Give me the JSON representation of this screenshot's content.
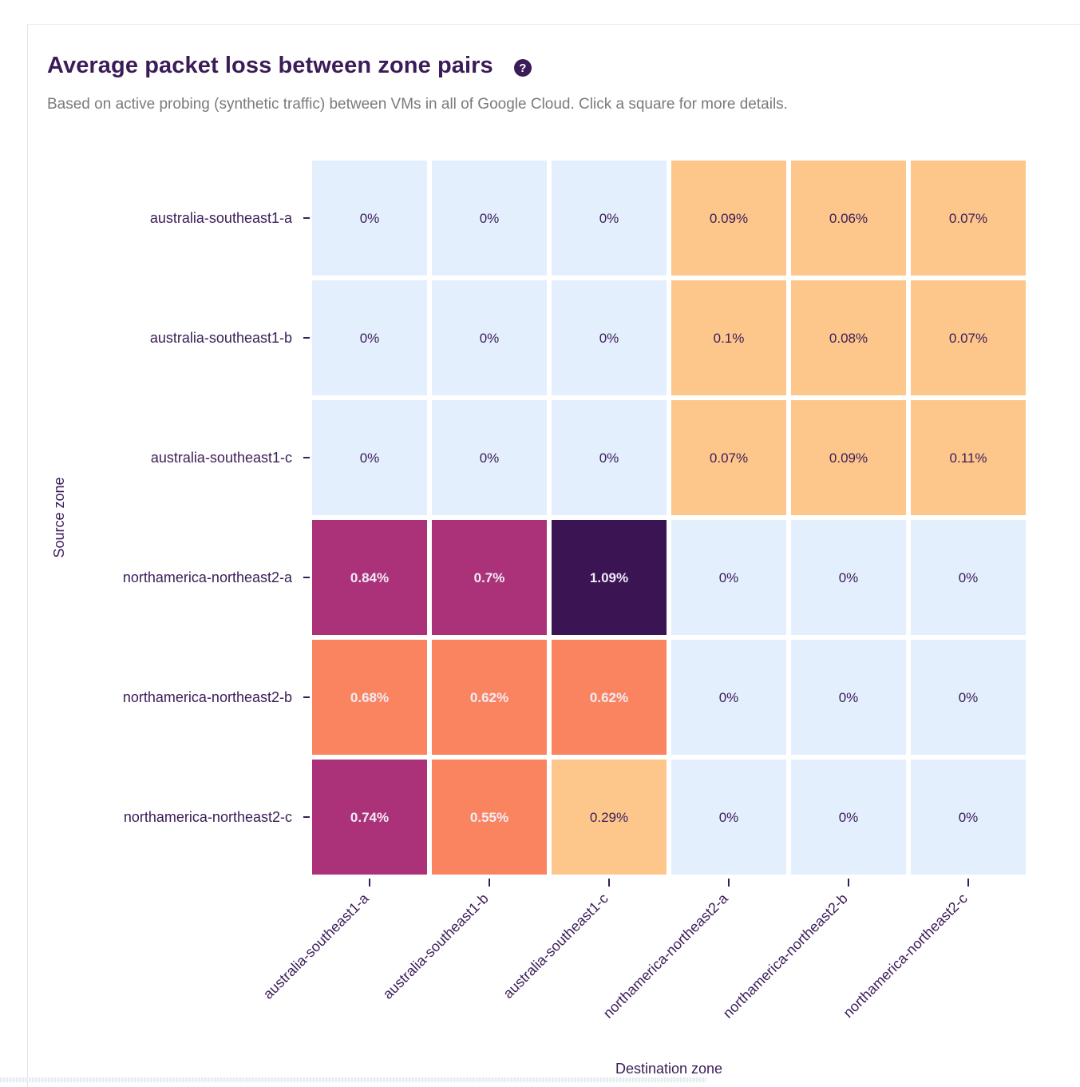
{
  "header": {
    "title": "Average packet loss between zone pairs",
    "help_icon": "question-circle-icon",
    "subtitle": "Based on active probing (synthetic traffic) between VMs in all of Google Cloud. Click a square for more details."
  },
  "chart_data": {
    "type": "heatmap",
    "xlabel": "Destination zone",
    "ylabel": "Source zone",
    "x_categories": [
      "australia-southeast1-a",
      "australia-southeast1-b",
      "australia-southeast1-c",
      "northamerica-northeast2-a",
      "northamerica-northeast2-b",
      "northamerica-northeast2-c"
    ],
    "y_categories": [
      "australia-southeast1-a",
      "australia-southeast1-b",
      "australia-southeast1-c",
      "northamerica-northeast2-a",
      "northamerica-northeast2-b",
      "northamerica-northeast2-c"
    ],
    "values": [
      [
        0,
        0,
        0,
        0.09,
        0.06,
        0.07
      ],
      [
        0,
        0,
        0,
        0.1,
        0.08,
        0.07
      ],
      [
        0,
        0,
        0,
        0.07,
        0.09,
        0.11
      ],
      [
        0.84,
        0.7,
        1.09,
        0,
        0,
        0
      ],
      [
        0.68,
        0.62,
        0.62,
        0,
        0,
        0
      ],
      [
        0.74,
        0.55,
        0.29,
        0,
        0,
        0
      ]
    ],
    "value_labels": [
      [
        "0%",
        "0%",
        "0%",
        "0.09%",
        "0.06%",
        "0.07%"
      ],
      [
        "0%",
        "0%",
        "0%",
        "0.1%",
        "0.08%",
        "0.07%"
      ],
      [
        "0%",
        "0%",
        "0%",
        "0.07%",
        "0.09%",
        "0.11%"
      ],
      [
        "0.84%",
        "0.7%",
        "1.09%",
        "0%",
        "0%",
        "0%"
      ],
      [
        "0.68%",
        "0.62%",
        "0.62%",
        "0%",
        "0%",
        "0%"
      ],
      [
        "0.74%",
        "0.55%",
        "0.29%",
        "0%",
        "0%",
        "0%"
      ]
    ],
    "unit": "%",
    "colors": {
      "zero": "#e3effc",
      "low": "#fdc78b",
      "mid": "#fa8460",
      "high": "#ab3278",
      "max": "#3b1454",
      "text_dark": "#3b1c58",
      "text_light": "#f2ecf7"
    },
    "grid": false,
    "legend": "none"
  }
}
